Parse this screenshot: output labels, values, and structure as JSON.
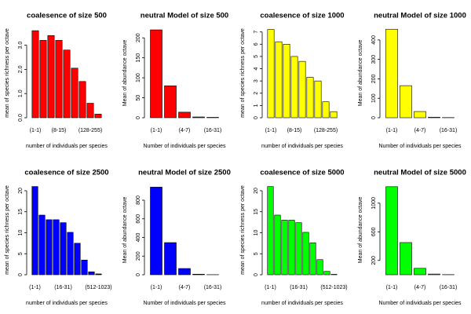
{
  "chart_data": [
    {
      "type": "bar",
      "title": "coalesence of size 500",
      "x_label": "number of individuals per species",
      "y_label": "mean of species richness per octave",
      "color": "#ff0000",
      "categories": [
        "(1-1)",
        null,
        null,
        "(8-15)",
        null,
        null,
        null,
        "(128-255)",
        null
      ],
      "values": [
        3.6,
        3.2,
        3.4,
        3.2,
        2.8,
        2.05,
        1.5,
        0.6,
        0.15
      ],
      "ylim": [
        0,
        3.7
      ],
      "yticks": [
        {
          "value": 0,
          "label": "0.0"
        },
        {
          "value": 1,
          "label": "1.0"
        },
        {
          "value": 2,
          "label": "2.0"
        },
        {
          "value": 3,
          "label": "3.0"
        }
      ]
    },
    {
      "type": "bar",
      "title": "neutral Model of size 500",
      "x_label": "Number of individuals per species",
      "y_label": "Mean of abundance octave",
      "color": "#ff0000",
      "categories": [
        "(1-1)",
        null,
        "(4-7)",
        null,
        "(16-31)"
      ],
      "values": [
        220,
        80,
        14,
        2,
        1
      ],
      "ylim": [
        0,
        224
      ],
      "yticks": [
        0,
        50,
        100,
        150,
        200
      ]
    },
    {
      "type": "bar",
      "title": "coalesence of size 1000",
      "x_label": "number of individuals per species",
      "y_label": "mean of species richness per octave",
      "color": "#ffff00",
      "categories": [
        "(1-1)",
        null,
        null,
        "(8-15)",
        null,
        null,
        null,
        "(128-255)",
        null
      ],
      "values": [
        7.2,
        6.2,
        6.0,
        5.0,
        4.6,
        3.3,
        3.0,
        1.3,
        0.5
      ],
      "ylim": [
        0,
        7.3
      ],
      "yticks": [
        0,
        1,
        2,
        3,
        4,
        5,
        6,
        7
      ]
    },
    {
      "type": "bar",
      "title": "neutral Model of size 1000",
      "x_label": "Number of individuals per species",
      "y_label": "Mean of abundance octave",
      "color": "#ffff00",
      "categories": [
        "(1-1)",
        null,
        "(4-7)",
        null,
        "(16-31)"
      ],
      "values": [
        455,
        165,
        32,
        3,
        1
      ],
      "ylim": [
        0,
        460
      ],
      "yticks": [
        0,
        100,
        200,
        300,
        400
      ]
    },
    {
      "type": "bar",
      "title": "coalesence of size 2500",
      "x_label": "number of individuals per species",
      "y_label": "mean of species richness per octave",
      "color": "#0000ff",
      "categories": [
        "(1-1)",
        null,
        null,
        null,
        "(16-31)",
        null,
        null,
        null,
        null,
        "(512-1023)"
      ],
      "values": [
        21,
        14.2,
        13.1,
        13.1,
        12.4,
        10.1,
        7.5,
        3.5,
        0.7,
        0.2
      ],
      "ylim": [
        0,
        21.3
      ],
      "yticks": [
        0,
        5,
        10,
        15,
        20
      ]
    },
    {
      "type": "bar",
      "title": "neutral Model of size 2500",
      "x_label": "Number of individuals per species",
      "y_label": "Mean of abundance octave",
      "color": "#0000ff",
      "categories": [
        "(1-1)",
        null,
        "(4-7)",
        null,
        "(16-31)"
      ],
      "values": [
        940,
        345,
        67,
        6,
        1
      ],
      "ylim": [
        0,
        960
      ],
      "yticks": [
        0,
        200,
        400,
        600,
        800
      ]
    },
    {
      "type": "bar",
      "title": "coalesence of size 5000",
      "x_label": "number of individuals per species",
      "y_label": "mean of species richness per octave",
      "color": "#00ff00",
      "categories": [
        "(1-1)",
        null,
        null,
        null,
        "(16-31)",
        null,
        null,
        null,
        null,
        "(512-1023)"
      ],
      "values": [
        21,
        14.2,
        13,
        13,
        12.4,
        10.1,
        7.6,
        3.6,
        0.8,
        0.1
      ],
      "ylim": [
        0,
        21.3
      ],
      "yticks": [
        0,
        5,
        10,
        15,
        20
      ]
    },
    {
      "type": "bar",
      "title": "neutral Model of size 5000",
      "x_label": "Number of individuals per species",
      "y_label": "Mean of abundance octave",
      "color": "#00ff00",
      "categories": [
        "(1-1)",
        null,
        "(4-7)",
        null,
        "(16-31)"
      ],
      "values": [
        1230,
        450,
        90,
        10,
        2
      ],
      "ylim": [
        0,
        1250
      ],
      "yticks": [
        200,
        600,
        1000
      ]
    }
  ]
}
